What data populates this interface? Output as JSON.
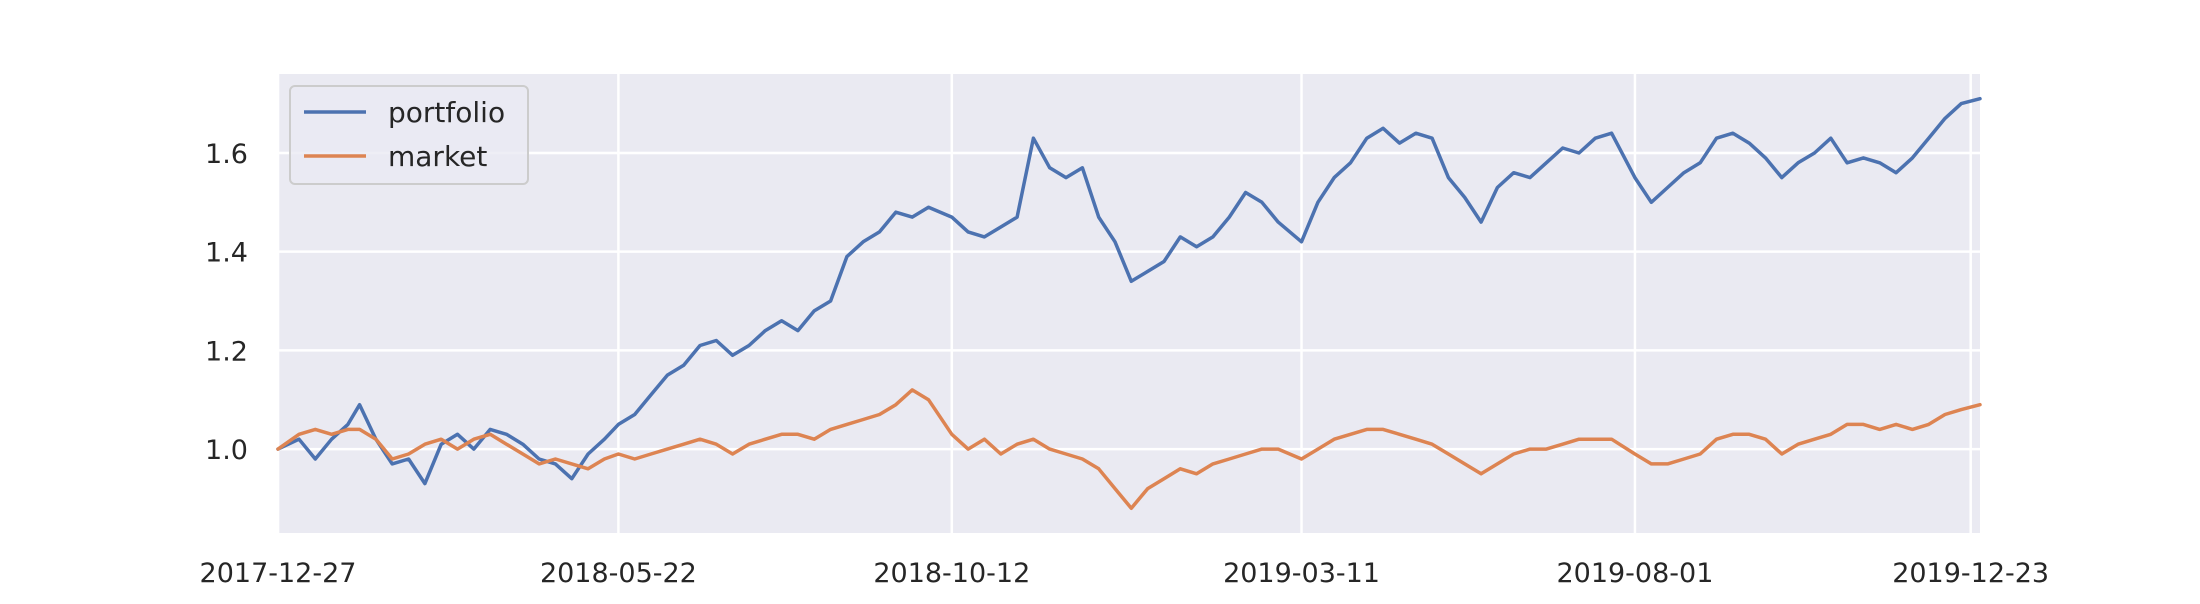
{
  "chart_data": {
    "type": "line",
    "title": "",
    "xlabel": "",
    "ylabel": "",
    "x_range": [
      "2017-12-27",
      "2019-12-27"
    ],
    "ylim": [
      0.83,
      1.76
    ],
    "x_ticks": [
      "2017-12-27",
      "2018-05-22",
      "2018-10-12",
      "2019-03-11",
      "2019-08-01",
      "2019-12-23"
    ],
    "y_ticks": [
      "1.0",
      "1.2",
      "1.4",
      "1.6"
    ],
    "grid": true,
    "legend_position": "top-left",
    "background": "#eaeaf2",
    "series": [
      {
        "name": "portfolio",
        "color": "#4c72b0",
        "points": [
          [
            "2017-12-27",
            1.0
          ],
          [
            "2018-01-05",
            1.02
          ],
          [
            "2018-01-12",
            0.98
          ],
          [
            "2018-01-19",
            1.02
          ],
          [
            "2018-01-26",
            1.05
          ],
          [
            "2018-01-31",
            1.09
          ],
          [
            "2018-02-07",
            1.02
          ],
          [
            "2018-02-14",
            0.97
          ],
          [
            "2018-02-21",
            0.98
          ],
          [
            "2018-02-28",
            0.93
          ],
          [
            "2018-03-07",
            1.01
          ],
          [
            "2018-03-14",
            1.03
          ],
          [
            "2018-03-21",
            1.0
          ],
          [
            "2018-03-28",
            1.04
          ],
          [
            "2018-04-04",
            1.03
          ],
          [
            "2018-04-11",
            1.01
          ],
          [
            "2018-04-18",
            0.98
          ],
          [
            "2018-04-25",
            0.97
          ],
          [
            "2018-05-02",
            0.94
          ],
          [
            "2018-05-09",
            0.99
          ],
          [
            "2018-05-16",
            1.02
          ],
          [
            "2018-05-22",
            1.05
          ],
          [
            "2018-05-29",
            1.07
          ],
          [
            "2018-06-05",
            1.11
          ],
          [
            "2018-06-12",
            1.15
          ],
          [
            "2018-06-19",
            1.17
          ],
          [
            "2018-06-26",
            1.21
          ],
          [
            "2018-07-03",
            1.22
          ],
          [
            "2018-07-10",
            1.19
          ],
          [
            "2018-07-17",
            1.21
          ],
          [
            "2018-07-24",
            1.24
          ],
          [
            "2018-07-31",
            1.26
          ],
          [
            "2018-08-07",
            1.24
          ],
          [
            "2018-08-14",
            1.28
          ],
          [
            "2018-08-21",
            1.3
          ],
          [
            "2018-08-28",
            1.39
          ],
          [
            "2018-09-04",
            1.42
          ],
          [
            "2018-09-11",
            1.44
          ],
          [
            "2018-09-18",
            1.48
          ],
          [
            "2018-09-25",
            1.47
          ],
          [
            "2018-10-02",
            1.49
          ],
          [
            "2018-10-12",
            1.47
          ],
          [
            "2018-10-19",
            1.44
          ],
          [
            "2018-10-26",
            1.43
          ],
          [
            "2018-11-02",
            1.45
          ],
          [
            "2018-11-09",
            1.47
          ],
          [
            "2018-11-16",
            1.63
          ],
          [
            "2018-11-23",
            1.57
          ],
          [
            "2018-11-30",
            1.55
          ],
          [
            "2018-12-07",
            1.57
          ],
          [
            "2018-12-14",
            1.47
          ],
          [
            "2018-12-21",
            1.42
          ],
          [
            "2018-12-28",
            1.34
          ],
          [
            "2019-01-04",
            1.36
          ],
          [
            "2019-01-11",
            1.38
          ],
          [
            "2019-01-18",
            1.43
          ],
          [
            "2019-01-25",
            1.41
          ],
          [
            "2019-02-01",
            1.43
          ],
          [
            "2019-02-08",
            1.47
          ],
          [
            "2019-02-15",
            1.52
          ],
          [
            "2019-02-22",
            1.5
          ],
          [
            "2019-03-01",
            1.46
          ],
          [
            "2019-03-11",
            1.42
          ],
          [
            "2019-03-18",
            1.5
          ],
          [
            "2019-03-25",
            1.55
          ],
          [
            "2019-04-01",
            1.58
          ],
          [
            "2019-04-08",
            1.63
          ],
          [
            "2019-04-15",
            1.65
          ],
          [
            "2019-04-22",
            1.62
          ],
          [
            "2019-04-29",
            1.64
          ],
          [
            "2019-05-06",
            1.63
          ],
          [
            "2019-05-13",
            1.55
          ],
          [
            "2019-05-20",
            1.51
          ],
          [
            "2019-05-27",
            1.46
          ],
          [
            "2019-06-03",
            1.53
          ],
          [
            "2019-06-10",
            1.56
          ],
          [
            "2019-06-17",
            1.55
          ],
          [
            "2019-06-24",
            1.58
          ],
          [
            "2019-07-01",
            1.61
          ],
          [
            "2019-07-08",
            1.6
          ],
          [
            "2019-07-15",
            1.63
          ],
          [
            "2019-07-22",
            1.64
          ],
          [
            "2019-08-01",
            1.55
          ],
          [
            "2019-08-08",
            1.5
          ],
          [
            "2019-08-15",
            1.53
          ],
          [
            "2019-08-22",
            1.56
          ],
          [
            "2019-08-29",
            1.58
          ],
          [
            "2019-09-05",
            1.63
          ],
          [
            "2019-09-12",
            1.64
          ],
          [
            "2019-09-19",
            1.62
          ],
          [
            "2019-09-26",
            1.59
          ],
          [
            "2019-10-03",
            1.55
          ],
          [
            "2019-10-10",
            1.58
          ],
          [
            "2019-10-17",
            1.6
          ],
          [
            "2019-10-24",
            1.63
          ],
          [
            "2019-10-31",
            1.58
          ],
          [
            "2019-11-07",
            1.59
          ],
          [
            "2019-11-14",
            1.58
          ],
          [
            "2019-11-21",
            1.56
          ],
          [
            "2019-11-28",
            1.59
          ],
          [
            "2019-12-05",
            1.63
          ],
          [
            "2019-12-12",
            1.67
          ],
          [
            "2019-12-19",
            1.7
          ],
          [
            "2019-12-27",
            1.71
          ]
        ]
      },
      {
        "name": "market",
        "color": "#dd8452",
        "points": [
          [
            "2017-12-27",
            1.0
          ],
          [
            "2018-01-05",
            1.03
          ],
          [
            "2018-01-12",
            1.04
          ],
          [
            "2018-01-19",
            1.03
          ],
          [
            "2018-01-26",
            1.04
          ],
          [
            "2018-01-31",
            1.04
          ],
          [
            "2018-02-07",
            1.02
          ],
          [
            "2018-02-14",
            0.98
          ],
          [
            "2018-02-21",
            0.99
          ],
          [
            "2018-02-28",
            1.01
          ],
          [
            "2018-03-07",
            1.02
          ],
          [
            "2018-03-14",
            1.0
          ],
          [
            "2018-03-21",
            1.02
          ],
          [
            "2018-03-28",
            1.03
          ],
          [
            "2018-04-04",
            1.01
          ],
          [
            "2018-04-11",
            0.99
          ],
          [
            "2018-04-18",
            0.97
          ],
          [
            "2018-04-25",
            0.98
          ],
          [
            "2018-05-02",
            0.97
          ],
          [
            "2018-05-09",
            0.96
          ],
          [
            "2018-05-16",
            0.98
          ],
          [
            "2018-05-22",
            0.99
          ],
          [
            "2018-05-29",
            0.98
          ],
          [
            "2018-06-05",
            0.99
          ],
          [
            "2018-06-12",
            1.0
          ],
          [
            "2018-06-19",
            1.01
          ],
          [
            "2018-06-26",
            1.02
          ],
          [
            "2018-07-03",
            1.01
          ],
          [
            "2018-07-10",
            0.99
          ],
          [
            "2018-07-17",
            1.01
          ],
          [
            "2018-07-24",
            1.02
          ],
          [
            "2018-07-31",
            1.03
          ],
          [
            "2018-08-07",
            1.03
          ],
          [
            "2018-08-14",
            1.02
          ],
          [
            "2018-08-21",
            1.04
          ],
          [
            "2018-08-28",
            1.05
          ],
          [
            "2018-09-04",
            1.06
          ],
          [
            "2018-09-11",
            1.07
          ],
          [
            "2018-09-18",
            1.09
          ],
          [
            "2018-09-25",
            1.12
          ],
          [
            "2018-10-02",
            1.1
          ],
          [
            "2018-10-12",
            1.03
          ],
          [
            "2018-10-19",
            1.0
          ],
          [
            "2018-10-26",
            1.02
          ],
          [
            "2018-11-02",
            0.99
          ],
          [
            "2018-11-09",
            1.01
          ],
          [
            "2018-11-16",
            1.02
          ],
          [
            "2018-11-23",
            1.0
          ],
          [
            "2018-11-30",
            0.99
          ],
          [
            "2018-12-07",
            0.98
          ],
          [
            "2018-12-14",
            0.96
          ],
          [
            "2018-12-21",
            0.92
          ],
          [
            "2018-12-28",
            0.88
          ],
          [
            "2019-01-04",
            0.92
          ],
          [
            "2019-01-11",
            0.94
          ],
          [
            "2019-01-18",
            0.96
          ],
          [
            "2019-01-25",
            0.95
          ],
          [
            "2019-02-01",
            0.97
          ],
          [
            "2019-02-08",
            0.98
          ],
          [
            "2019-02-15",
            0.99
          ],
          [
            "2019-02-22",
            1.0
          ],
          [
            "2019-03-01",
            1.0
          ],
          [
            "2019-03-11",
            0.98
          ],
          [
            "2019-03-18",
            1.0
          ],
          [
            "2019-03-25",
            1.02
          ],
          [
            "2019-04-01",
            1.03
          ],
          [
            "2019-04-08",
            1.04
          ],
          [
            "2019-04-15",
            1.04
          ],
          [
            "2019-04-22",
            1.03
          ],
          [
            "2019-04-29",
            1.02
          ],
          [
            "2019-05-06",
            1.01
          ],
          [
            "2019-05-13",
            0.99
          ],
          [
            "2019-05-20",
            0.97
          ],
          [
            "2019-05-27",
            0.95
          ],
          [
            "2019-06-03",
            0.97
          ],
          [
            "2019-06-10",
            0.99
          ],
          [
            "2019-06-17",
            1.0
          ],
          [
            "2019-06-24",
            1.0
          ],
          [
            "2019-07-01",
            1.01
          ],
          [
            "2019-07-08",
            1.02
          ],
          [
            "2019-07-15",
            1.02
          ],
          [
            "2019-07-22",
            1.02
          ],
          [
            "2019-08-01",
            0.99
          ],
          [
            "2019-08-08",
            0.97
          ],
          [
            "2019-08-15",
            0.97
          ],
          [
            "2019-08-22",
            0.98
          ],
          [
            "2019-08-29",
            0.99
          ],
          [
            "2019-09-05",
            1.02
          ],
          [
            "2019-09-12",
            1.03
          ],
          [
            "2019-09-19",
            1.03
          ],
          [
            "2019-09-26",
            1.02
          ],
          [
            "2019-10-03",
            0.99
          ],
          [
            "2019-10-10",
            1.01
          ],
          [
            "2019-10-17",
            1.02
          ],
          [
            "2019-10-24",
            1.03
          ],
          [
            "2019-10-31",
            1.05
          ],
          [
            "2019-11-07",
            1.05
          ],
          [
            "2019-11-14",
            1.04
          ],
          [
            "2019-11-21",
            1.05
          ],
          [
            "2019-11-28",
            1.04
          ],
          [
            "2019-12-05",
            1.05
          ],
          [
            "2019-12-12",
            1.07
          ],
          [
            "2019-12-19",
            1.08
          ],
          [
            "2019-12-27",
            1.09
          ]
        ]
      }
    ]
  }
}
